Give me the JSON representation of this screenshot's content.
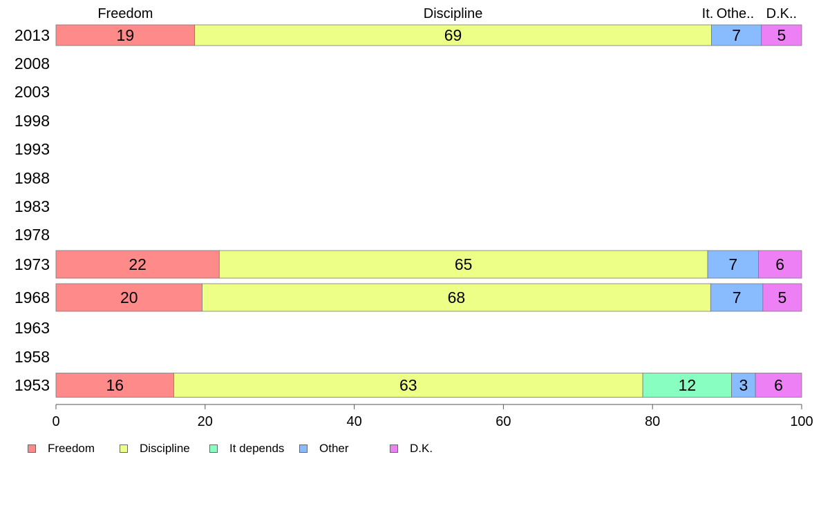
{
  "chart_data": {
    "type": "bar",
    "orientation": "horizontal",
    "stacked": true,
    "title": "",
    "xlabel": "",
    "ylabel": "",
    "xlim": [
      0,
      100
    ],
    "x_ticks": [
      "0",
      "20",
      "40",
      "60",
      "80",
      "100"
    ],
    "categories": [
      "2013",
      "2008",
      "2003",
      "1998",
      "1993",
      "1988",
      "1983",
      "1978",
      "1973",
      "1968",
      "1963",
      "1958",
      "1953"
    ],
    "series": [
      {
        "name": "Freedom",
        "color": "#ff8a8a",
        "values": [
          18.6,
          null,
          null,
          null,
          null,
          null,
          null,
          null,
          21.9,
          19.6,
          null,
          null,
          15.8
        ]
      },
      {
        "name": "Discipline",
        "color": "#eeff88",
        "values": [
          69.3,
          null,
          null,
          null,
          null,
          null,
          null,
          null,
          65.5,
          68.2,
          null,
          null,
          62.9
        ]
      },
      {
        "name": "It depends",
        "color": "#88ffc0",
        "values": [
          0,
          null,
          null,
          null,
          null,
          null,
          null,
          null,
          0,
          0,
          null,
          null,
          11.9
        ]
      },
      {
        "name": "Other",
        "color": "#88bbff",
        "values": [
          6.7,
          null,
          null,
          null,
          null,
          null,
          null,
          null,
          6.8,
          7.0,
          null,
          null,
          3.2
        ]
      },
      {
        "name": "D.K.",
        "color": "#ee80f5",
        "values": [
          5.4,
          null,
          null,
          null,
          null,
          null,
          null,
          null,
          5.8,
          5.2,
          null,
          null,
          6.2
        ]
      }
    ],
    "data_labels": {
      "2013": [
        "19",
        "69",
        "",
        "7",
        "5"
      ],
      "1973": [
        "22",
        "65",
        "",
        "7",
        "6"
      ],
      "1968": [
        "20",
        "68",
        "",
        "7",
        "5"
      ],
      "1953": [
        "16",
        "63",
        "12",
        "3",
        "6"
      ]
    },
    "top_labels": [
      "Freedom",
      "Discipline",
      "It.",
      "Othe..",
      "D.K.."
    ],
    "grid": false,
    "legend_position": "bottom-left"
  }
}
